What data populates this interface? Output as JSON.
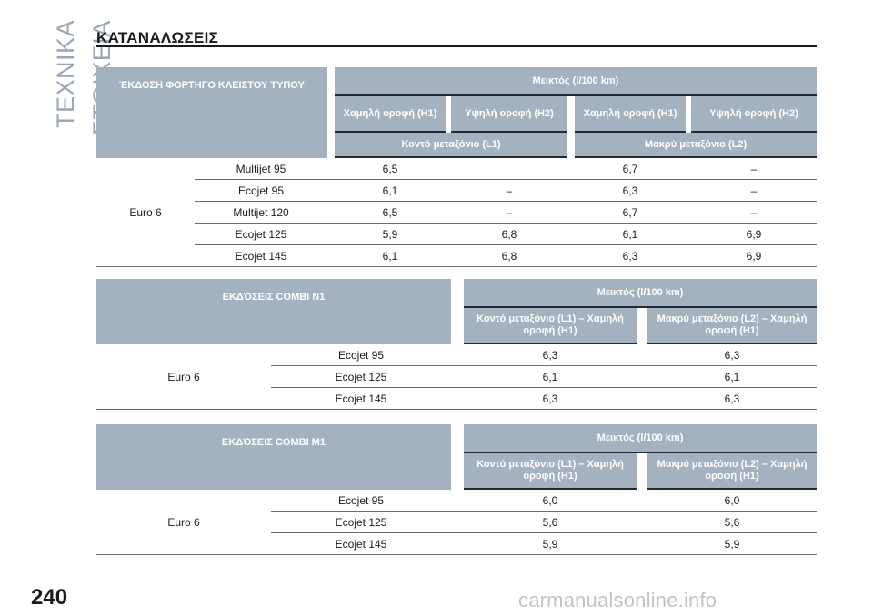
{
  "side_title": "ΤΕΧΝΙΚΑ ΣΤΟΙΧΕΙΑ",
  "page_title": "ΚΑΤΑΝΑΛΩΣΕΙΣ",
  "page_number": "240",
  "watermark": "carmanualsonline.info",
  "table1": {
    "corner": "ΈΚΔΟΣΗ ΦΟΡΤΗΓΟ ΚΛΕΙΣΤΟΥ ΤΥΠΟΥ",
    "group_header": "Μεικτός (l/100 km)",
    "roof_headers": [
      "Χαμηλή οροφή (H1)",
      "Υψηλή οροφή (H2)",
      "Χαμηλή οροφή (H1)",
      "Υψηλή οροφή (H2)"
    ],
    "wheelbase_headers": [
      "Κοντό μεταξόνιο (L1)",
      "Μακρύ μεταξόνιο (L2)"
    ],
    "group_label": "Euro 6",
    "rows": [
      {
        "engine": "Multijet 95",
        "values": [
          "6,5",
          "",
          "6,7",
          "–"
        ]
      },
      {
        "engine": "Ecojet 95",
        "values": [
          "6,1",
          "–",
          "6,3",
          "–"
        ]
      },
      {
        "engine": "Multijet 120",
        "values": [
          "6,5",
          "–",
          "6,7",
          "–"
        ]
      },
      {
        "engine": "Ecojet 125",
        "values": [
          "5,9",
          "6,8",
          "6,1",
          "6,9"
        ]
      },
      {
        "engine": "Ecojet 145",
        "values": [
          "6,1",
          "6,8",
          "6,3",
          "6,9"
        ]
      }
    ]
  },
  "table2": {
    "corner": "ΕΚΔΌΣΕΙΣ COMBI N1",
    "group_header": "Μεικτός (l/100 km)",
    "sub_headers": [
      "Κοντό μεταξόνιο (L1) – Χαμηλή οροφή (H1)",
      "Μακρύ μεταξόνιο (L2) – Χαμηλή οροφή (H1)"
    ],
    "group_label": "Euro 6",
    "rows": [
      {
        "engine": "Ecojet 95",
        "values": [
          "6,3",
          "6,3"
        ]
      },
      {
        "engine": "Ecojet 125",
        "values": [
          "6,1",
          "6,1"
        ]
      },
      {
        "engine": "Ecojet 145",
        "values": [
          "6,3",
          "6,3"
        ]
      }
    ]
  },
  "table3": {
    "corner": "ΕΚΔΌΣΕΙΣ COMBI M1",
    "group_header": "Μεικτός (l/100 km)",
    "sub_headers": [
      "Κοντό μεταξόνιο (L1) – Χαμηλή οροφή (H1)",
      "Μακρύ μεταξόνιο (L2) – Χαμηλή οροφή (H1)"
    ],
    "group_label": "Euro 6",
    "rows": [
      {
        "engine": "Ecojet 95",
        "values": [
          "6,0",
          "6,0"
        ]
      },
      {
        "engine": "Ecojet 125",
        "values": [
          "5,6",
          "5,6"
        ]
      },
      {
        "engine": "Ecojet 145",
        "values": [
          "5,9",
          "5,9"
        ]
      }
    ]
  }
}
